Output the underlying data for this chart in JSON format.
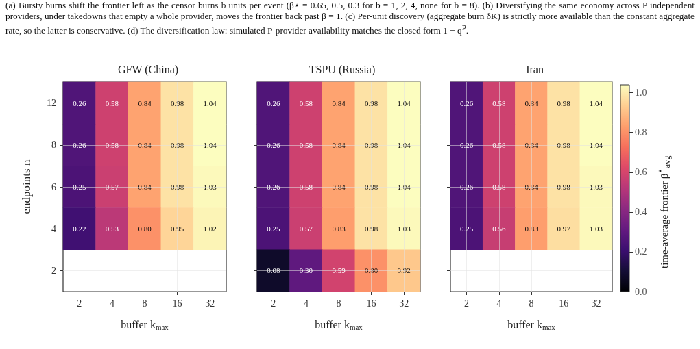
{
  "chart_data": [
    {
      "type": "heatmap",
      "title": "GFW (China)",
      "xlabel": "buffer k$_{max}$",
      "ylabel": "endpoints n",
      "annotations": [
        "(a) Bursty burns shift the frontier left as the censor burns b units per event (β⋆ = 0.65, 0.5, 0.3 for b = 1, 2, 4, none for b = 8). (b) Diversifying the same economy across P independent providers, under takedowns that empty a whole provider, moves the frontier back past β = 1. (c) Per-unit discovery (aggregate burn δK) is strictly more available than the constant aggregate rate, so the latter is conservative. (d) The diversification law: simulated P-provider availability matches the closed form 1 − q$^{P}$."
      ],
      "categories": [
        "2",
        "4",
        "8",
        "16",
        "32"
      ],
      "y_categories": [
        "12",
        "8",
        "6",
        "4",
        "2"
      ],
      "cells": [
        [
          0.26,
          0.58,
          0.84,
          0.98,
          1.04
        ],
        [
          0.26,
          0.58,
          0.84,
          0.98,
          1.04
        ],
        [
          0.25,
          0.57,
          0.84,
          0.98,
          1.03
        ],
        [
          0.22,
          0.53,
          0.8,
          0.95,
          1.02
        ],
        [
          null,
          null,
          null,
          null,
          null
        ]
      ],
      "cell_labels": [
        [
          "0.26",
          "0.58",
          "0.84",
          "0.98",
          "1.04"
        ],
        [
          "0.26",
          "0.58",
          "0.84",
          "0.98",
          "1.04"
        ],
        [
          "0.25",
          "0.57",
          "0.84",
          "0.98",
          "1.03"
        ],
        [
          "0.22",
          "0.53",
          "0.80",
          "0.95",
          "1.02"
        ],
        [
          null,
          null,
          null,
          null,
          null
        ]
      ],
      "data_labels": true,
      "grid": true
    },
    {
      "type": "heatmap",
      "title": "TSPU (Russia)",
      "xlabel": "buffer k$_{max}$",
      "categories": [
        "2",
        "4",
        "8",
        "16",
        "32"
      ],
      "y_categories": [
        "12",
        "8",
        "6",
        "4",
        "2"
      ],
      "cells": [
        [
          0.26,
          0.58,
          0.84,
          0.98,
          1.04
        ],
        [
          0.26,
          0.58,
          0.84,
          0.98,
          1.04
        ],
        [
          0.26,
          0.58,
          0.84,
          0.98,
          1.04
        ],
        [
          0.25,
          0.57,
          0.83,
          0.98,
          1.03
        ],
        [
          0.08,
          0.3,
          0.59,
          0.8,
          0.92
        ]
      ],
      "cell_labels": [
        [
          "0.26",
          "0.58",
          "0.84",
          "0.98",
          "1.04"
        ],
        [
          "0.26",
          "0.58",
          "0.84",
          "0.98",
          "1.04"
        ],
        [
          "0.26",
          "0.58",
          "0.84",
          "0.98",
          "1.04"
        ],
        [
          "0.25",
          "0.57",
          "0.83",
          "0.98",
          "1.03"
        ],
        [
          "0.08",
          "0.30",
          "0.59",
          "0.80",
          "0.92"
        ]
      ],
      "data_labels": true,
      "grid": true,
      "tick_labels": "x"
    },
    {
      "type": "heatmap",
      "title": "Iran",
      "xlabel": "buffer k$_{max}$",
      "categories": [
        "2",
        "4",
        "8",
        "16",
        "32"
      ],
      "y_categories": [
        "12",
        "8",
        "6",
        "4",
        "2"
      ],
      "cells": [
        [
          0.26,
          0.58,
          0.84,
          0.98,
          1.04
        ],
        [
          0.26,
          0.58,
          0.84,
          0.98,
          1.04
        ],
        [
          0.26,
          0.58,
          0.84,
          0.98,
          1.03
        ],
        [
          0.25,
          0.56,
          0.83,
          0.97,
          1.03
        ],
        [
          null,
          null,
          null,
          null,
          null
        ]
      ],
      "clim": [
        0,
        1.04
      ],
      "clabel": "time-average frontier β$^{⋆}$$_{avg}$",
      "cticks": [
        {
          "value": 0,
          "label": "0.0"
        },
        {
          "value": 0.2,
          "label": "0.2"
        },
        {
          "value": 0.4,
          "label": "0.4"
        },
        {
          "value": 0.6,
          "label": "0.6"
        },
        {
          "value": 0.8,
          "label": "0.8"
        },
        {
          "value": 1,
          "label": "1.0"
        }
      ],
      "data_labels": true,
      "grid": true,
      "tick_labels": "x"
    }
  ]
}
